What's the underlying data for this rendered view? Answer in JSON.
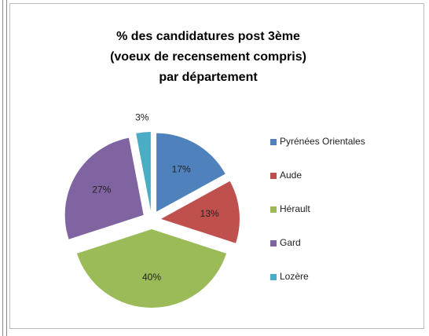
{
  "chart_data": {
    "type": "pie",
    "title": [
      "% des candidatures post 3ème",
      "(voeux de recensement compris)",
      "par département"
    ],
    "categories": [
      "Pyrénées Orientales",
      "Aude",
      "Hérault",
      "Gard",
      "Lozère"
    ],
    "values": [
      17,
      13,
      40,
      27,
      3
    ],
    "value_labels": [
      "17%",
      "13%",
      "40%",
      "27%",
      "3%"
    ],
    "colors": [
      "#4f81bd",
      "#c0504d",
      "#9bbb59",
      "#8064a2",
      "#4bacc6"
    ],
    "exploded": true,
    "legend": "right"
  }
}
